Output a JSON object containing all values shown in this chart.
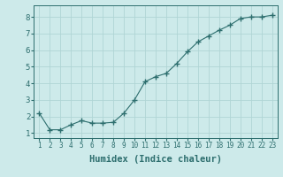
{
  "x": [
    1,
    2,
    3,
    4,
    5,
    6,
    7,
    8,
    9,
    10,
    11,
    12,
    13,
    14,
    15,
    16,
    17,
    18,
    19,
    20,
    21,
    22,
    23
  ],
  "y": [
    2.2,
    1.2,
    1.2,
    1.5,
    1.75,
    1.6,
    1.6,
    1.65,
    2.2,
    3.0,
    4.1,
    4.4,
    4.6,
    5.2,
    5.9,
    6.5,
    6.85,
    7.2,
    7.5,
    7.9,
    8.0,
    8.0,
    8.1
  ],
  "line_color": "#2d6e6e",
  "marker": "+",
  "marker_size": 4,
  "xlabel": "Humidex (Indice chaleur)",
  "xlim": [
    0.5,
    23.5
  ],
  "ylim": [
    0.7,
    8.7
  ],
  "yticks": [
    1,
    2,
    3,
    4,
    5,
    6,
    7,
    8
  ],
  "xticks": [
    1,
    2,
    3,
    4,
    5,
    6,
    7,
    8,
    9,
    10,
    11,
    12,
    13,
    14,
    15,
    16,
    17,
    18,
    19,
    20,
    21,
    22,
    23
  ],
  "bg_color": "#cdeaea",
  "grid_color": "#b0d5d5",
  "line_width": 0.8,
  "tick_fontsize": 5.5,
  "xlabel_fontsize": 7.5
}
